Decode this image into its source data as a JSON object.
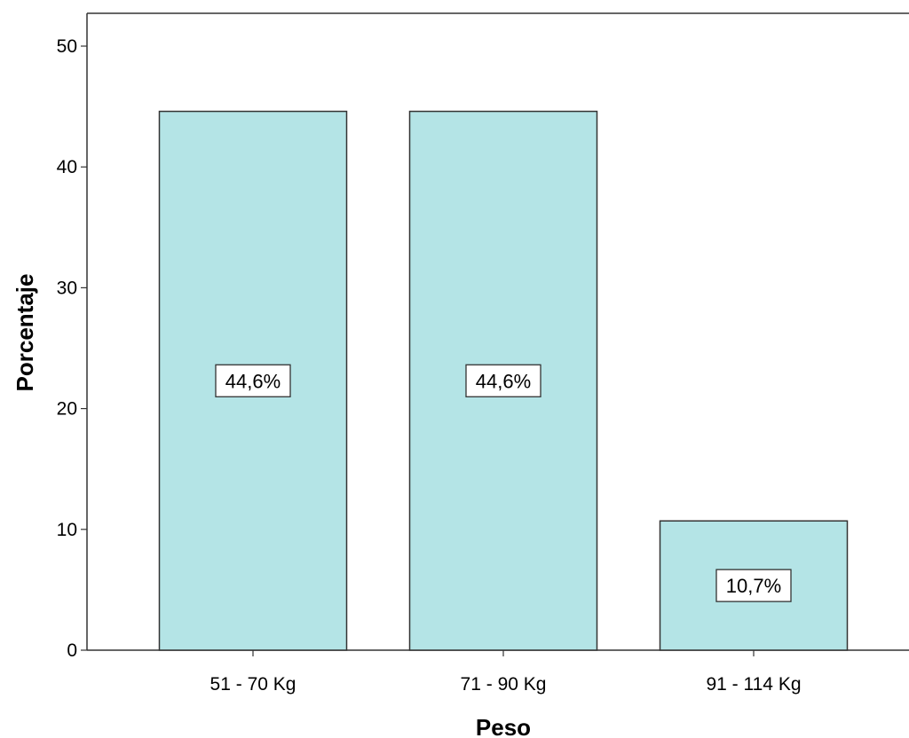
{
  "chart_data": {
    "type": "bar",
    "xlabel": "Peso",
    "ylabel": "Porcentaje",
    "categories": [
      "51 - 70 Kg",
      "71 - 90 Kg",
      "91 - 114 Kg"
    ],
    "values": [
      44.6,
      44.6,
      10.7
    ],
    "data_labels": [
      "44,6%",
      "44,6%",
      "10,7%"
    ],
    "ylim": [
      0,
      50
    ],
    "yticks": [
      0,
      10,
      20,
      30,
      40,
      50
    ],
    "grid": false,
    "legend": "none",
    "bar_color": "#b4e4e6",
    "bar_edge_color": "#333333"
  }
}
